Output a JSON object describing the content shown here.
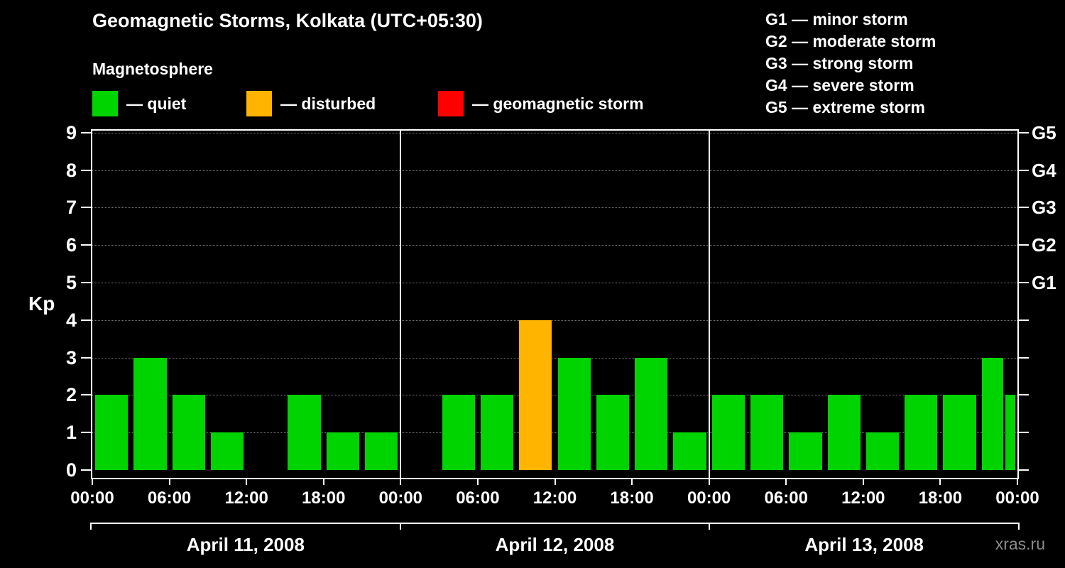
{
  "header": {
    "title": "Geomagnetic Storms, Kolkata (UTC+05:30)",
    "subtitle": "Magnetosphere"
  },
  "legend": {
    "items": [
      {
        "name": "quiet",
        "label": "— quiet",
        "color": "#00d400"
      },
      {
        "name": "disturbed",
        "label": "— disturbed",
        "color": "#ffb400"
      },
      {
        "name": "storm",
        "label": "— geomagnetic storm",
        "color": "#ff0000"
      }
    ]
  },
  "storm_scale_legend": {
    "items": [
      "G1 — minor storm",
      "G2 — moderate storm",
      "G3 — strong storm",
      "G4 — severe storm",
      "G5 — extreme storm"
    ]
  },
  "watermark": "xras.ru",
  "chart_data": {
    "type": "bar",
    "ylabel": "Kp",
    "ylim": [
      0,
      9
    ],
    "yticks": [
      0,
      1,
      2,
      3,
      4,
      5,
      6,
      7,
      8,
      9
    ],
    "right_axis_labels": [
      {
        "kp": 5,
        "label": "G1"
      },
      {
        "kp": 6,
        "label": "G2"
      },
      {
        "kp": 7,
        "label": "G3"
      },
      {
        "kp": 8,
        "label": "G4"
      },
      {
        "kp": 9,
        "label": "G5"
      }
    ],
    "x_tick_labels": [
      "00:00",
      "06:00",
      "12:00",
      "18:00"
    ],
    "interval_hours": 3,
    "days": [
      {
        "date": "April 11, 2008",
        "values": [
          2,
          3,
          2,
          1,
          0,
          2,
          1,
          1
        ]
      },
      {
        "date": "April 12, 2008",
        "values": [
          0,
          2,
          2,
          4,
          3,
          2,
          3,
          1
        ]
      },
      {
        "date": "April 13, 2008",
        "values": [
          2,
          2,
          1,
          2,
          1,
          2,
          2,
          3
        ]
      }
    ],
    "next_interval_partial_value": 2,
    "colors": {
      "quiet": "#00d400",
      "disturbed": "#ffb400",
      "storm": "#ff0000"
    },
    "color_rule": {
      "quiet_max_kp": 3,
      "disturbed_kp": 4,
      "storm_min_kp": 5
    },
    "grid": "dotted-horizontal",
    "legend_position": "top"
  }
}
